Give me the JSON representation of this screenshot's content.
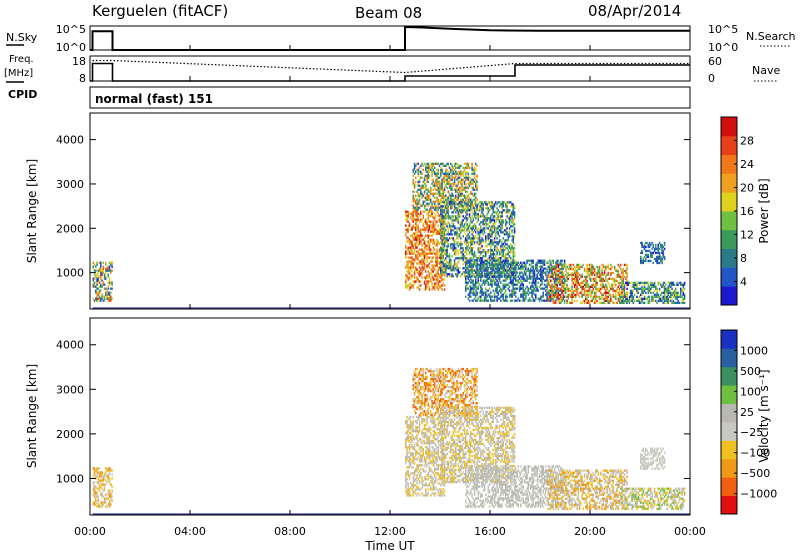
{
  "header": {
    "station": "Kerguelen (fitACF)",
    "beam": "Beam 08",
    "date": "08/Apr/2014"
  },
  "side_labels": {
    "nsky": "N.Sky",
    "freq_line1": "Freq.",
    "freq_line2": "[MHz]",
    "cpid": "CPID",
    "nsearch": "N.Search",
    "nave": "Nave",
    "cpid_value": "normal (fast) 151"
  },
  "colors": {
    "power": [
      "#1a1acc",
      "#2255c8",
      "#2a7a8a",
      "#3a9a5a",
      "#6fc040",
      "#e0d020",
      "#f0a020",
      "#f07818",
      "#e84018",
      "#d01010"
    ],
    "velocity": [
      "#e01010",
      "#f06010",
      "#f09818",
      "#f0c020",
      "#c8c8c0",
      "#b8b8b0",
      "#70c040",
      "#3a9060",
      "#2a60a0",
      "#1a30c0"
    ]
  },
  "chart_data": [
    {
      "type": "line",
      "name": "nsky-nsearch",
      "x_ticks": [
        "00:00",
        "04:00",
        "08:00",
        "12:00",
        "16:00",
        "20:00",
        "00:00"
      ],
      "left_axis_ticks": [
        "10^5",
        "10^0"
      ],
      "right_axis_ticks": [
        "10^5",
        "10^0"
      ],
      "series": [
        {
          "name": "N.Sky",
          "x_hours": [
            0,
            0.1,
            0.1,
            0.9,
            0.9,
            12.6,
            12.6,
            13.2,
            14.5,
            16,
            18,
            20,
            22,
            24
          ],
          "y_level": [
            0,
            0,
            0.78,
            0.78,
            0,
            0,
            0.96,
            0.94,
            0.88,
            0.82,
            0.8,
            0.8,
            0.8,
            0.8
          ]
        }
      ]
    },
    {
      "type": "line",
      "name": "freq-nave",
      "left_axis_ticks": [
        "18",
        "8"
      ],
      "right_axis_ticks": [
        "60",
        "0"
      ],
      "series": [
        {
          "name": "Freq",
          "x_hours": [
            0,
            0.1,
            0.1,
            0.9,
            0.9,
            12.6,
            12.6,
            17.0,
            17.0,
            24
          ],
          "y_level": [
            0,
            0,
            0.7,
            0.7,
            0,
            0,
            0.2,
            0.2,
            0.64,
            0.64
          ]
        },
        {
          "name": "Nave",
          "x_hours": [
            0.1,
            0.9,
            12.6,
            17.0,
            24
          ],
          "y_level": [
            0.82,
            0.82,
            0.34,
            0.7,
            0.7
          ]
        }
      ]
    },
    {
      "type": "heatmap",
      "name": "power",
      "ylabel": "Slant Range [km]",
      "y_ticks": [
        "1000",
        "2000",
        "3000",
        "4000"
      ],
      "ylim": [
        180,
        4600
      ],
      "xlim": [
        0,
        24
      ],
      "colorbar_label": "Power [dB]",
      "colorbar_ticks": [
        "4",
        "8",
        "12",
        "16",
        "20",
        "24",
        "28"
      ],
      "clusters": [
        {
          "t0": 0.1,
          "t1": 0.9,
          "r0": 350,
          "r1": 1250,
          "v0": 3,
          "v1": 28
        },
        {
          "t0": 12.6,
          "t1": 14.2,
          "r0": 600,
          "r1": 2400,
          "v0": 16,
          "v1": 30
        },
        {
          "t0": 12.9,
          "t1": 15.5,
          "r0": 2400,
          "r1": 3500,
          "v0": 4,
          "v1": 26
        },
        {
          "t0": 14.0,
          "t1": 17.0,
          "r0": 900,
          "r1": 2600,
          "v0": 2,
          "v1": 20
        },
        {
          "t0": 15.0,
          "t1": 19.0,
          "r0": 350,
          "r1": 1300,
          "v0": 2,
          "v1": 14
        },
        {
          "t0": 18.3,
          "t1": 21.5,
          "r0": 300,
          "r1": 1200,
          "v0": 10,
          "v1": 31
        },
        {
          "t0": 21.2,
          "t1": 23.8,
          "r0": 300,
          "r1": 800,
          "v0": 2,
          "v1": 18
        },
        {
          "t0": 22.0,
          "t1": 23.0,
          "r0": 1200,
          "r1": 1700,
          "v0": 2,
          "v1": 12
        }
      ]
    },
    {
      "type": "heatmap",
      "name": "velocity",
      "xlabel": "Time UT",
      "ylabel": "Slant Range [km]",
      "y_ticks": [
        "1000",
        "2000",
        "3000",
        "4000"
      ],
      "ylim": [
        180,
        4600
      ],
      "xlim": [
        0,
        24
      ],
      "x_ticks": [
        "00:00",
        "04:00",
        "08:00",
        "12:00",
        "16:00",
        "20:00",
        "00:00"
      ],
      "colorbar_label": "Velocity [m s⁻¹]",
      "colorbar_ticks": [
        "1000",
        "500",
        "100",
        "25",
        "−25",
        "−100",
        "−500",
        "−1000"
      ],
      "clusters": [
        {
          "t0": 0.1,
          "t1": 0.9,
          "r0": 350,
          "r1": 1250,
          "v0": 2,
          "v1": 5
        },
        {
          "t0": 12.6,
          "t1": 14.2,
          "r0": 600,
          "r1": 2400,
          "v0": 3,
          "v1": 6
        },
        {
          "t0": 12.9,
          "t1": 15.5,
          "r0": 2400,
          "r1": 3500,
          "v0": 1,
          "v1": 5
        },
        {
          "t0": 14.0,
          "t1": 17.0,
          "r0": 900,
          "r1": 2600,
          "v0": 3,
          "v1": 6
        },
        {
          "t0": 15.0,
          "t1": 19.0,
          "r0": 350,
          "r1": 1300,
          "v0": 4,
          "v1": 6
        },
        {
          "t0": 18.3,
          "t1": 21.5,
          "r0": 300,
          "r1": 1200,
          "v0": 2,
          "v1": 6
        },
        {
          "t0": 21.2,
          "t1": 23.8,
          "r0": 300,
          "r1": 800,
          "v0": 3,
          "v1": 7
        },
        {
          "t0": 22.0,
          "t1": 23.0,
          "r0": 1200,
          "r1": 1700,
          "v0": 4,
          "v1": 5
        }
      ]
    }
  ]
}
